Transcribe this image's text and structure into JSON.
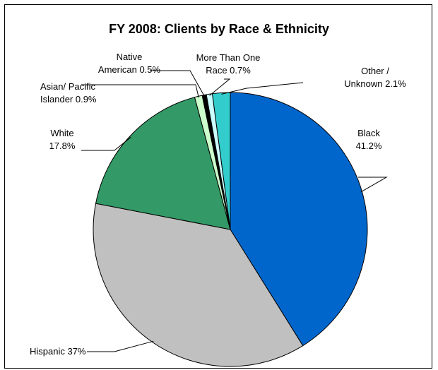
{
  "chart_data": {
    "type": "pie",
    "title": "FY 2008: Clients by Race & Ethnicity",
    "slices": [
      {
        "label_lines": [
          "Black",
          "41.2%"
        ],
        "value": 41.2,
        "color": "#0066cc"
      },
      {
        "label_lines": [
          "Hispanic 37%"
        ],
        "value": 37.0,
        "color": "#c0c0c0"
      },
      {
        "label_lines": [
          "White",
          "17.8%"
        ],
        "value": 17.8,
        "color": "#339966"
      },
      {
        "label_lines": [
          "Asian/ Pacific",
          "Islander 0.9%"
        ],
        "value": 0.9,
        "color": "#ccffcc"
      },
      {
        "label_lines": [
          "Native",
          "American 0.5%"
        ],
        "value": 0.5,
        "color": "#000000"
      },
      {
        "label_lines": [
          "More Than One",
          "Race 0.7%"
        ],
        "value": 0.7,
        "color": "#ccffff"
      },
      {
        "label_lines": [
          "Other /",
          "Unknown 2.1%"
        ],
        "value": 2.1,
        "color": "#33cccc"
      }
    ],
    "start_angle_deg": 0,
    "direction": "clockwise",
    "legend": "none",
    "labels": "outside with leader lines"
  }
}
